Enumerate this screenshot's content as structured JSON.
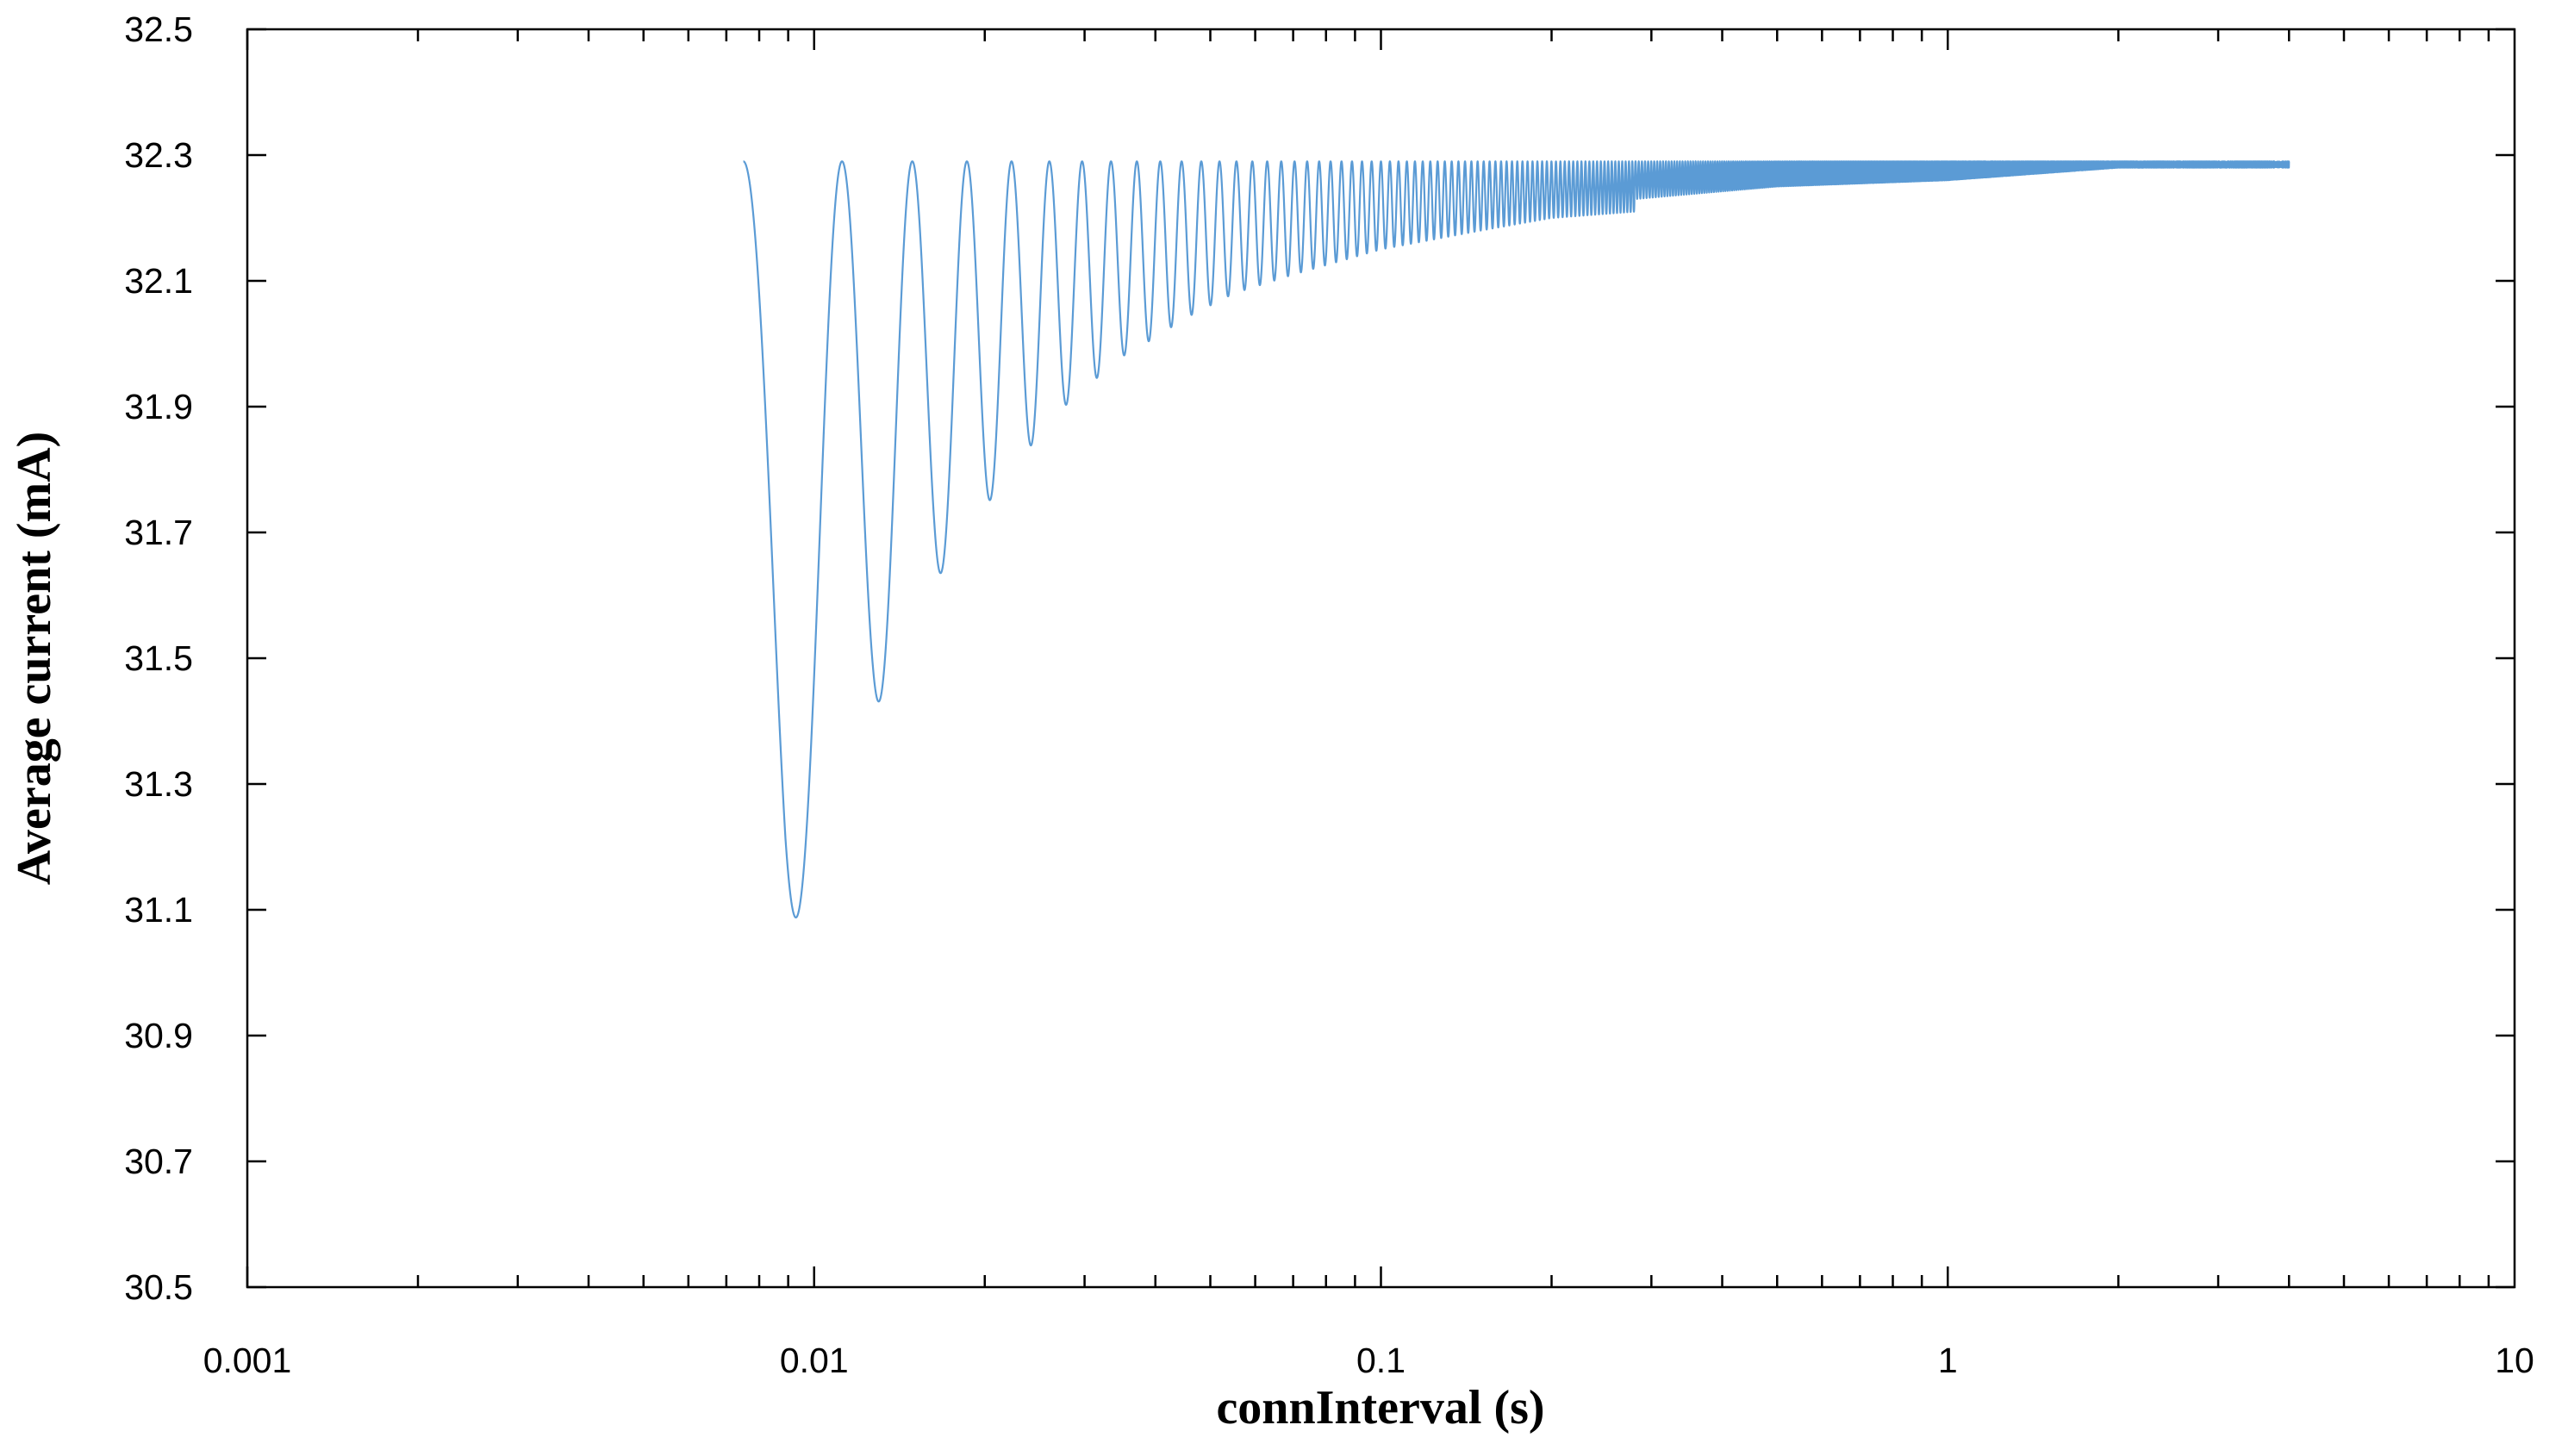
{
  "chart_data": {
    "type": "line",
    "title": "",
    "xlabel": "connInterval (s)",
    "ylabel": "Average current (mA)",
    "xscale": "log",
    "xlim": [
      0.001,
      10
    ],
    "ylim": [
      30.5,
      32.5
    ],
    "xticks": [
      "0.001",
      "0.01",
      "0.1",
      "1",
      "10"
    ],
    "yticks": [
      "30.5",
      "30.7",
      "30.9",
      "31.1",
      "31.3",
      "31.5",
      "31.7",
      "31.9",
      "32.1",
      "32.3",
      "32.5"
    ],
    "grid": false,
    "legend": "none",
    "series_color": "#5b9bd5",
    "series": [
      {
        "minima": [
          {
            "x": 0.0089,
            "y": 31.04
          },
          {
            "x": 0.0127,
            "y": 31.41
          },
          {
            "x": 0.0163,
            "y": 31.62
          },
          {
            "x": 0.02,
            "y": 31.74
          },
          {
            "x": 0.0237,
            "y": 31.83
          },
          {
            "x": 0.0276,
            "y": 31.9
          },
          {
            "x": 0.031,
            "y": 31.94
          },
          {
            "x": 0.035,
            "y": 31.98
          },
          {
            "x": 0.04,
            "y": 32.01
          },
          {
            "x": 0.045,
            "y": 32.04
          },
          {
            "x": 0.055,
            "y": 32.08
          },
          {
            "x": 0.07,
            "y": 32.11
          },
          {
            "x": 0.1,
            "y": 32.15
          },
          {
            "x": 0.15,
            "y": 32.18
          },
          {
            "x": 0.2,
            "y": 32.2
          },
          {
            "x": 0.28,
            "y": 32.21
          },
          {
            "x": 0.28,
            "y": 32.23
          },
          {
            "x": 0.5,
            "y": 32.25
          },
          {
            "x": 1.0,
            "y": 32.26
          },
          {
            "x": 2.0,
            "y": 32.28
          },
          {
            "x": 2.25,
            "y": 32.28
          },
          {
            "x": 4.0,
            "y": 32.28
          }
        ],
        "maximum": 32.29,
        "x_start": 0.0075,
        "x_end": 4.0
      }
    ]
  }
}
